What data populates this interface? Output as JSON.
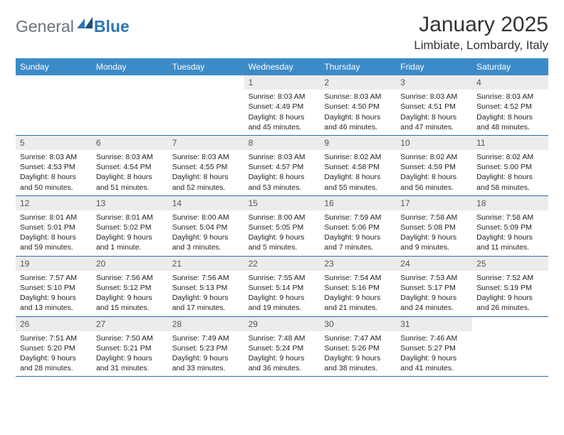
{
  "logo": {
    "text1": "General",
    "text2": "Blue"
  },
  "title": "January 2025",
  "location": "Limbiate, Lombardy, Italy",
  "weekdays": [
    "Sunday",
    "Monday",
    "Tuesday",
    "Wednesday",
    "Thursday",
    "Friday",
    "Saturday"
  ],
  "colors": {
    "headerBg": "#3b8bc9",
    "headerText": "#ffffff",
    "dayNumBg": "#ececec",
    "borderColor": "#2e6da4"
  },
  "weeks": [
    [
      null,
      null,
      null,
      {
        "n": "1",
        "sr": "8:03 AM",
        "ss": "4:49 PM",
        "dl": "8 hours and 45 minutes."
      },
      {
        "n": "2",
        "sr": "8:03 AM",
        "ss": "4:50 PM",
        "dl": "8 hours and 46 minutes."
      },
      {
        "n": "3",
        "sr": "8:03 AM",
        "ss": "4:51 PM",
        "dl": "8 hours and 47 minutes."
      },
      {
        "n": "4",
        "sr": "8:03 AM",
        "ss": "4:52 PM",
        "dl": "8 hours and 48 minutes."
      }
    ],
    [
      {
        "n": "5",
        "sr": "8:03 AM",
        "ss": "4:53 PM",
        "dl": "8 hours and 50 minutes."
      },
      {
        "n": "6",
        "sr": "8:03 AM",
        "ss": "4:54 PM",
        "dl": "8 hours and 51 minutes."
      },
      {
        "n": "7",
        "sr": "8:03 AM",
        "ss": "4:55 PM",
        "dl": "8 hours and 52 minutes."
      },
      {
        "n": "8",
        "sr": "8:03 AM",
        "ss": "4:57 PM",
        "dl": "8 hours and 53 minutes."
      },
      {
        "n": "9",
        "sr": "8:02 AM",
        "ss": "4:58 PM",
        "dl": "8 hours and 55 minutes."
      },
      {
        "n": "10",
        "sr": "8:02 AM",
        "ss": "4:59 PM",
        "dl": "8 hours and 56 minutes."
      },
      {
        "n": "11",
        "sr": "8:02 AM",
        "ss": "5:00 PM",
        "dl": "8 hours and 58 minutes."
      }
    ],
    [
      {
        "n": "12",
        "sr": "8:01 AM",
        "ss": "5:01 PM",
        "dl": "8 hours and 59 minutes."
      },
      {
        "n": "13",
        "sr": "8:01 AM",
        "ss": "5:02 PM",
        "dl": "9 hours and 1 minute."
      },
      {
        "n": "14",
        "sr": "8:00 AM",
        "ss": "5:04 PM",
        "dl": "9 hours and 3 minutes."
      },
      {
        "n": "15",
        "sr": "8:00 AM",
        "ss": "5:05 PM",
        "dl": "9 hours and 5 minutes."
      },
      {
        "n": "16",
        "sr": "7:59 AM",
        "ss": "5:06 PM",
        "dl": "9 hours and 7 minutes."
      },
      {
        "n": "17",
        "sr": "7:58 AM",
        "ss": "5:08 PM",
        "dl": "9 hours and 9 minutes."
      },
      {
        "n": "18",
        "sr": "7:58 AM",
        "ss": "5:09 PM",
        "dl": "9 hours and 11 minutes."
      }
    ],
    [
      {
        "n": "19",
        "sr": "7:57 AM",
        "ss": "5:10 PM",
        "dl": "9 hours and 13 minutes."
      },
      {
        "n": "20",
        "sr": "7:56 AM",
        "ss": "5:12 PM",
        "dl": "9 hours and 15 minutes."
      },
      {
        "n": "21",
        "sr": "7:56 AM",
        "ss": "5:13 PM",
        "dl": "9 hours and 17 minutes."
      },
      {
        "n": "22",
        "sr": "7:55 AM",
        "ss": "5:14 PM",
        "dl": "9 hours and 19 minutes."
      },
      {
        "n": "23",
        "sr": "7:54 AM",
        "ss": "5:16 PM",
        "dl": "9 hours and 21 minutes."
      },
      {
        "n": "24",
        "sr": "7:53 AM",
        "ss": "5:17 PM",
        "dl": "9 hours and 24 minutes."
      },
      {
        "n": "25",
        "sr": "7:52 AM",
        "ss": "5:19 PM",
        "dl": "9 hours and 26 minutes."
      }
    ],
    [
      {
        "n": "26",
        "sr": "7:51 AM",
        "ss": "5:20 PM",
        "dl": "9 hours and 28 minutes."
      },
      {
        "n": "27",
        "sr": "7:50 AM",
        "ss": "5:21 PM",
        "dl": "9 hours and 31 minutes."
      },
      {
        "n": "28",
        "sr": "7:49 AM",
        "ss": "5:23 PM",
        "dl": "9 hours and 33 minutes."
      },
      {
        "n": "29",
        "sr": "7:48 AM",
        "ss": "5:24 PM",
        "dl": "9 hours and 36 minutes."
      },
      {
        "n": "30",
        "sr": "7:47 AM",
        "ss": "5:26 PM",
        "dl": "9 hours and 38 minutes."
      },
      {
        "n": "31",
        "sr": "7:46 AM",
        "ss": "5:27 PM",
        "dl": "9 hours and 41 minutes."
      },
      null
    ]
  ],
  "labels": {
    "sunrise": "Sunrise:",
    "sunset": "Sunset:",
    "daylight": "Daylight:"
  }
}
